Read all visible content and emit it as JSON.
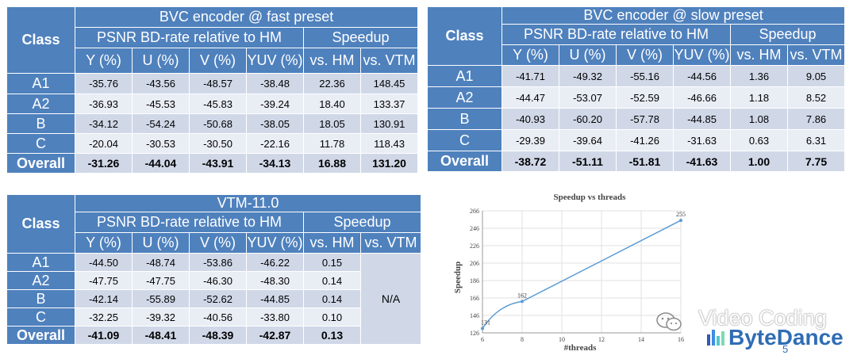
{
  "tables": [
    {
      "title": "BVC encoder @ fast preset",
      "class_header": "Class",
      "group1": "PSNR BD-rate relative to HM",
      "group2": "Speedup",
      "cols": [
        "Y (%)",
        "U (%)",
        "V (%)",
        "YUV (%)",
        "vs. HM",
        "vs. VTM"
      ],
      "rows": [
        {
          "cls": "A1",
          "vals": [
            "-35.76",
            "-43.56",
            "-48.57",
            "-38.48",
            "22.36",
            "148.45"
          ]
        },
        {
          "cls": "A2",
          "vals": [
            "-36.93",
            "-45.53",
            "-45.83",
            "-39.24",
            "18.40",
            "133.37"
          ]
        },
        {
          "cls": "B",
          "vals": [
            "-34.12",
            "-54.24",
            "-50.68",
            "-38.05",
            "18.05",
            "130.91"
          ]
        },
        {
          "cls": "C",
          "vals": [
            "-20.04",
            "-30.53",
            "-30.50",
            "-22.16",
            "11.78",
            "118.43"
          ]
        },
        {
          "cls": "Overall",
          "vals": [
            "-31.26",
            "-44.04",
            "-43.91",
            "-34.13",
            "16.88",
            "131.20"
          ]
        }
      ]
    },
    {
      "title": "BVC encoder @ slow preset",
      "class_header": "Class",
      "group1": "PSNR BD-rate relative to HM",
      "group2": "Speedup",
      "cols": [
        "Y (%)",
        "U (%)",
        "V (%)",
        "YUV (%)",
        "vs. HM",
        "vs. VTM"
      ],
      "rows": [
        {
          "cls": "A1",
          "vals": [
            "-41.71",
            "-49.32",
            "-55.16",
            "-44.56",
            "1.36",
            "9.05"
          ]
        },
        {
          "cls": "A2",
          "vals": [
            "-44.47",
            "-53.07",
            "-52.59",
            "-46.66",
            "1.18",
            "8.52"
          ]
        },
        {
          "cls": "B",
          "vals": [
            "-40.93",
            "-60.20",
            "-57.78",
            "-44.85",
            "1.08",
            "7.86"
          ]
        },
        {
          "cls": "C",
          "vals": [
            "-29.39",
            "-39.64",
            "-41.26",
            "-31.63",
            "0.63",
            "6.31"
          ]
        },
        {
          "cls": "Overall",
          "vals": [
            "-38.72",
            "-51.11",
            "-51.81",
            "-41.63",
            "1.00",
            "7.75"
          ]
        }
      ]
    },
    {
      "title": "VTM-11.0",
      "class_header": "Class",
      "group1": "PSNR BD-rate relative to HM",
      "group2": "Speedup",
      "cols": [
        "Y (%)",
        "U (%)",
        "V (%)",
        "YUV (%)",
        "vs. HM",
        "vs. VTM"
      ],
      "na": "N/A",
      "rows": [
        {
          "cls": "A1",
          "vals": [
            "-44.50",
            "-48.74",
            "-53.86",
            "-46.22",
            "0.15"
          ]
        },
        {
          "cls": "A2",
          "vals": [
            "-47.75",
            "-47.75",
            "-46.30",
            "-48.30",
            "0.14"
          ]
        },
        {
          "cls": "B",
          "vals": [
            "-42.14",
            "-55.89",
            "-52.62",
            "-44.85",
            "0.14"
          ]
        },
        {
          "cls": "C",
          "vals": [
            "-32.25",
            "-39.32",
            "-40.56",
            "-33.80",
            "0.10"
          ]
        },
        {
          "cls": "Overall",
          "vals": [
            "-41.09",
            "-48.41",
            "-48.39",
            "-42.87",
            "0.13"
          ]
        }
      ]
    }
  ],
  "chart_data": {
    "type": "line",
    "title": "Speedup vs threads",
    "xlabel": "#threads",
    "ylabel": "Speedup",
    "xlim": [
      6,
      16
    ],
    "ylim": [
      126,
      266
    ],
    "xticks": [
      6,
      8,
      10,
      12,
      14,
      16
    ],
    "yticks": [
      126,
      146,
      166,
      186,
      206,
      226,
      246,
      266
    ],
    "grid": true,
    "line_color": "#5b9bd5",
    "x": [
      6,
      8,
      16
    ],
    "y": [
      131,
      162,
      255
    ],
    "data_labels": [
      "131",
      "162",
      "255"
    ]
  },
  "branding": {
    "wechat_text": "Video Coding",
    "company": "ByteDance",
    "page_number": "5"
  }
}
